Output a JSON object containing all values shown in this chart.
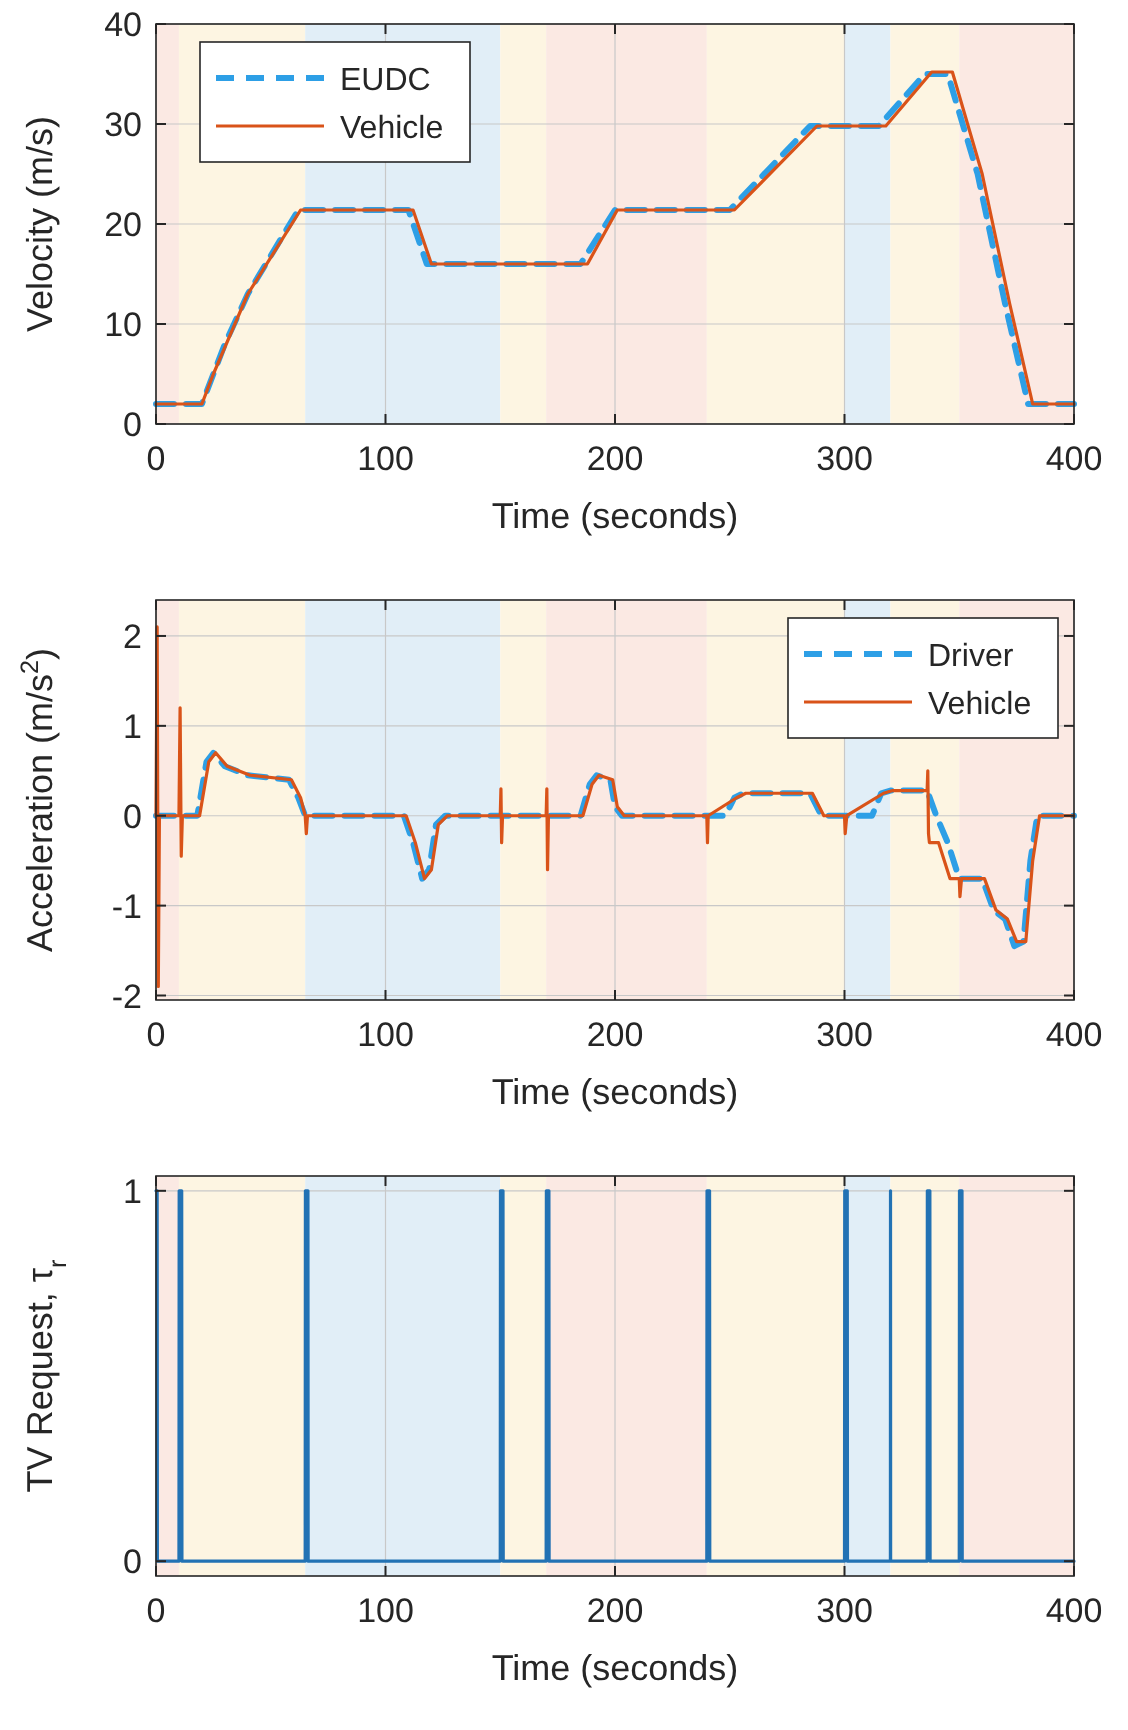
{
  "chart_data": [
    {
      "type": "line",
      "xlabel": "Time (seconds)",
      "ylabel": "Velocity (m/s)",
      "xlim": [
        0,
        400
      ],
      "xticks": [
        0,
        100,
        200,
        300,
        400
      ],
      "ylim": [
        0,
        40
      ],
      "yticks": [
        0,
        10,
        20,
        30,
        40
      ],
      "grid": true,
      "legend": "top left",
      "bands": [
        {
          "axis": "x",
          "from": 0,
          "to": 10,
          "color": "#fbe9e3"
        },
        {
          "axis": "x",
          "from": 10,
          "to": 65,
          "color": "#fdf5e2"
        },
        {
          "axis": "x",
          "from": 65,
          "to": 150,
          "color": "#e1eef7"
        },
        {
          "axis": "x",
          "from": 150,
          "to": 170,
          "color": "#fdf5e2"
        },
        {
          "axis": "x",
          "from": 170,
          "to": 240,
          "color": "#fbe9e3"
        },
        {
          "axis": "x",
          "from": 240,
          "to": 300,
          "color": "#fdf5e2"
        },
        {
          "axis": "x",
          "from": 300,
          "to": 320,
          "color": "#e1eef7"
        },
        {
          "axis": "x",
          "from": 320,
          "to": 350,
          "color": "#fdf5e2"
        },
        {
          "axis": "x",
          "from": 350,
          "to": 400,
          "color": "#fbe9e3"
        }
      ],
      "series": [
        {
          "name": "EUDC",
          "color": "#2d9fe6",
          "line_style": "dashed",
          "x": [
            0,
            20,
            30,
            40,
            62,
            110,
            118,
            185,
            200,
            250,
            285,
            315,
            335,
            345,
            358,
            370,
            380,
            400
          ],
          "values": [
            2,
            2,
            8,
            13,
            21.4,
            21.4,
            16,
            16,
            21.4,
            21.4,
            29.8,
            29.8,
            35,
            35,
            25,
            12,
            2,
            2
          ]
        },
        {
          "name": "Vehicle",
          "color": "#d95319",
          "line_style": "solid",
          "x": [
            0,
            20,
            25,
            40,
            63,
            112,
            120,
            188,
            201,
            252,
            288,
            318,
            338,
            347,
            360,
            372,
            382,
            400
          ],
          "values": [
            2,
            2,
            5,
            13,
            21.4,
            21.4,
            16,
            16,
            21.4,
            21.4,
            29.8,
            29.8,
            35.2,
            35.2,
            25,
            12,
            2,
            2
          ]
        }
      ]
    },
    {
      "type": "line",
      "xlabel": "Time (seconds)",
      "ylabel": "Acceleration (m/s$^{2}$)",
      "xlim": [
        0,
        400
      ],
      "xticks": [
        0,
        100,
        200,
        300,
        400
      ],
      "ylim": [
        -2.05,
        2.4
      ],
      "yticks": [
        -2,
        -1,
        0,
        1,
        2
      ],
      "grid": true,
      "legend": "top right",
      "bands": [
        {
          "axis": "x",
          "from": 0,
          "to": 10,
          "color": "#fbe9e3"
        },
        {
          "axis": "x",
          "from": 10,
          "to": 65,
          "color": "#fdf5e2"
        },
        {
          "axis": "x",
          "from": 65,
          "to": 150,
          "color": "#e1eef7"
        },
        {
          "axis": "x",
          "from": 150,
          "to": 170,
          "color": "#fdf5e2"
        },
        {
          "axis": "x",
          "from": 170,
          "to": 240,
          "color": "#fbe9e3"
        },
        {
          "axis": "x",
          "from": 240,
          "to": 300,
          "color": "#fdf5e2"
        },
        {
          "axis": "x",
          "from": 300,
          "to": 320,
          "color": "#e1eef7"
        },
        {
          "axis": "x",
          "from": 320,
          "to": 350,
          "color": "#fdf5e2"
        },
        {
          "axis": "x",
          "from": 350,
          "to": 400,
          "color": "#fbe9e3"
        }
      ],
      "series": [
        {
          "name": "Driver",
          "color": "#2d9fe6",
          "line_style": "dashed",
          "x": [
            0,
            18,
            22,
            25,
            30,
            40,
            58,
            62,
            65,
            108,
            112,
            116,
            119,
            122,
            126,
            185,
            189,
            192,
            198,
            200,
            203,
            248,
            252,
            256,
            285,
            290,
            312,
            316,
            320,
            336,
            340,
            345,
            350,
            360,
            365,
            370,
            374,
            378,
            381,
            384,
            400
          ],
          "values": [
            0,
            0,
            0.6,
            0.7,
            0.55,
            0.45,
            0.4,
            0.2,
            0,
            0,
            -0.3,
            -0.7,
            -0.6,
            -0.1,
            0,
            0,
            0.35,
            0.45,
            0.4,
            0.1,
            0,
            0,
            0.2,
            0.25,
            0.25,
            0,
            0,
            0.25,
            0.28,
            0.28,
            0,
            -0.3,
            -0.7,
            -0.7,
            -1.05,
            -1.15,
            -1.45,
            -1.4,
            -0.5,
            0,
            0
          ]
        },
        {
          "name": "Vehicle",
          "color": "#d95319",
          "line_style": "solid",
          "x": [
            0,
            0.5,
            1,
            1.5,
            10,
            10.5,
            11,
            11.5,
            19,
            23,
            26,
            31,
            41,
            59,
            63,
            65,
            65.5,
            66,
            109,
            113,
            117,
            120,
            123,
            127,
            150,
            150.3,
            150.6,
            151,
            170,
            170.3,
            170.6,
            171,
            186,
            190,
            193,
            199,
            201,
            204,
            240,
            240.3,
            240.6,
            253,
            257,
            286,
            291,
            300,
            300.3,
            301,
            317,
            321,
            336,
            336.3,
            336.6,
            337,
            341,
            346,
            350,
            350.3,
            351,
            361,
            366,
            371,
            375,
            379,
            382,
            385,
            400
          ],
          "values": [
            0,
            2.1,
            -1.9,
            0,
            0,
            1.2,
            -0.45,
            0,
            0,
            0.6,
            0.7,
            0.55,
            0.45,
            0.4,
            0.2,
            0,
            -0.2,
            0,
            0,
            -0.3,
            -0.7,
            -0.6,
            -0.1,
            0,
            0,
            0.3,
            -0.3,
            0,
            0,
            0.3,
            -0.6,
            0,
            0,
            0.35,
            0.45,
            0.4,
            0.1,
            0,
            0,
            -0.3,
            0,
            0.2,
            0.25,
            0.25,
            0,
            0,
            -0.2,
            0,
            0.25,
            0.28,
            0.28,
            0.5,
            -0.2,
            -0.3,
            -0.3,
            -0.7,
            -0.7,
            -0.9,
            -0.7,
            -0.7,
            -1.05,
            -1.15,
            -1.4,
            -1.4,
            -0.5,
            0,
            0
          ]
        }
      ]
    },
    {
      "type": "line",
      "xlabel": "Time (seconds)",
      "ylabel": "TV Request, τ$_{r}$",
      "xlim": [
        0,
        400
      ],
      "xticks": [
        0,
        100,
        200,
        300,
        400
      ],
      "ylim": [
        -0.04,
        1.04
      ],
      "yticks": [
        0,
        1
      ],
      "grid": true,
      "bands": [
        {
          "axis": "x",
          "from": 0,
          "to": 10,
          "color": "#fbe9e3"
        },
        {
          "axis": "x",
          "from": 10,
          "to": 65,
          "color": "#fdf5e2"
        },
        {
          "axis": "x",
          "from": 65,
          "to": 150,
          "color": "#e1eef7"
        },
        {
          "axis": "x",
          "from": 150,
          "to": 170,
          "color": "#fdf5e2"
        },
        {
          "axis": "x",
          "from": 170,
          "to": 240,
          "color": "#fbe9e3"
        },
        {
          "axis": "x",
          "from": 240,
          "to": 300,
          "color": "#fdf5e2"
        },
        {
          "axis": "x",
          "from": 300,
          "to": 320,
          "color": "#e1eef7"
        },
        {
          "axis": "x",
          "from": 320,
          "to": 350,
          "color": "#fdf5e2"
        },
        {
          "axis": "x",
          "from": 350,
          "to": 400,
          "color": "#fbe9e3"
        }
      ],
      "series": [
        {
          "color": "#2272b4",
          "line_style": "solid",
          "x": [
            0,
            0.5,
            0.6,
            10,
            10.1,
            11.2,
            11.3,
            65,
            65.1,
            66.2,
            66.3,
            150,
            150.1,
            151.2,
            151.3,
            170,
            170.1,
            171.2,
            171.3,
            240,
            240.1,
            241.2,
            241.3,
            300,
            300.1,
            301.2,
            301.3,
            320,
            320.05,
            320.1,
            336,
            336.1,
            337.2,
            337.3,
            350,
            350.1,
            351.2,
            351.3,
            400
          ],
          "values": [
            1,
            1,
            0,
            0,
            1,
            1,
            0,
            0,
            1,
            1,
            0,
            0,
            1,
            1,
            0,
            0,
            1,
            1,
            0,
            0,
            1,
            1,
            0,
            0,
            1,
            1,
            0,
            0,
            1,
            0,
            0,
            1,
            1,
            0,
            0,
            1,
            1,
            0,
            0
          ]
        }
      ]
    }
  ]
}
